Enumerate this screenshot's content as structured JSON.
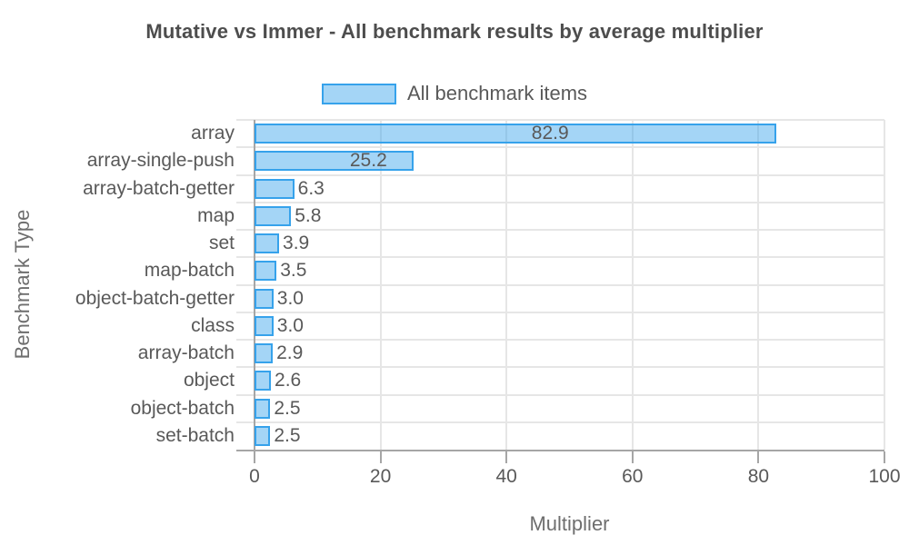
{
  "chart_data": {
    "type": "bar",
    "orientation": "horizontal",
    "title": "Mutative vs Immer - All benchmark results by average multiplier",
    "legend": {
      "label": "All benchmark items",
      "position": "top"
    },
    "xlabel": "Multiplier",
    "ylabel": "Benchmark Type",
    "xlim": [
      0,
      100
    ],
    "xticks": [
      0,
      20,
      40,
      60,
      80,
      100
    ],
    "grid": true,
    "categories": [
      "array",
      "array-single-push",
      "array-batch-getter",
      "map",
      "set",
      "map-batch",
      "object-batch-getter",
      "class",
      "array-batch",
      "object",
      "object-batch",
      "set-batch"
    ],
    "values": [
      82.9,
      25.2,
      6.3,
      5.8,
      3.9,
      3.5,
      3.0,
      3.0,
      2.9,
      2.6,
      2.5,
      2.5
    ],
    "value_labels": [
      "82.9",
      "25.2",
      "6.3",
      "5.8",
      "3.9",
      "3.5",
      "3.0",
      "3.0",
      "2.9",
      "2.6",
      "2.5",
      "2.5"
    ],
    "colors": {
      "bar_fill": "rgba(54,162,235,0.45)",
      "bar_border": "#36a2eb",
      "grid": "#e6e6e6",
      "axis": "#a6a6a6",
      "text": "#595959",
      "title": "#4d4d4d",
      "axis_title": "#6e6e6e"
    }
  }
}
